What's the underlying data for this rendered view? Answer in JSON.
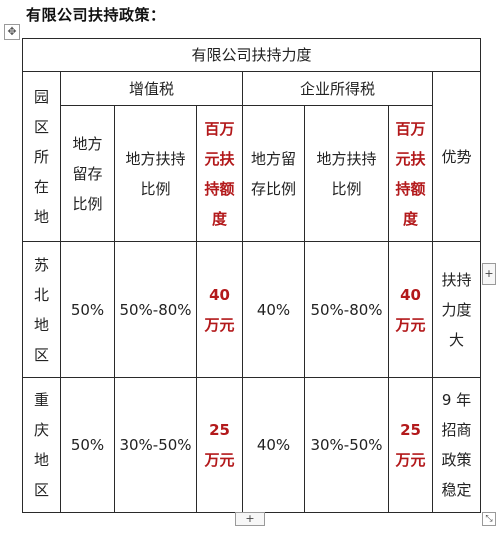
{
  "heading": "有限公司扶持政策：",
  "controls": {
    "move_glyph": "✥",
    "add_row_glyph": "+",
    "add_col_glyph": "+",
    "resize_glyph": "⤡"
  },
  "table": {
    "title": "有限公司扶持力度",
    "park_header": [
      "园",
      "区",
      "所",
      "在",
      "地"
    ],
    "vat_header": "增值税",
    "cit_header": "企业所得税",
    "advantage_header": "优势",
    "sub_headers": {
      "vat_local_retention": [
        "地方",
        "留存",
        "比例"
      ],
      "vat_support_ratio": [
        "地方扶持",
        "比例"
      ],
      "vat_million_support": [
        "百万",
        "元扶",
        "持额",
        "度"
      ],
      "cit_local_retention": [
        "地方留",
        "存比例"
      ],
      "cit_support_ratio": [
        "地方扶持",
        "比例"
      ],
      "cit_million_support": [
        "百万",
        "元扶",
        "持额",
        "度"
      ]
    },
    "rows": [
      {
        "region": [
          "苏",
          "北",
          "地",
          "区"
        ],
        "vat_retention": "50%",
        "vat_support": "50%-80%",
        "vat_amount": [
          "40",
          "万元"
        ],
        "cit_retention": "40%",
        "cit_support": "50%-80%",
        "cit_amount": [
          "40",
          "万元"
        ],
        "advantage": [
          "扶持",
          "力度",
          "大"
        ]
      },
      {
        "region": [
          "重",
          "庆",
          "地",
          "区"
        ],
        "vat_retention": "50%",
        "vat_support": "30%-50%",
        "vat_amount": [
          "25",
          "万元"
        ],
        "cit_retention": "40%",
        "cit_support": "30%-50%",
        "cit_amount": [
          "25",
          "万元"
        ],
        "advantage": [
          "9 年",
          "招商",
          "政策",
          "稳定"
        ]
      }
    ]
  },
  "colors": {
    "accent_red": "#b3191b",
    "border": "#2a2a2a"
  }
}
